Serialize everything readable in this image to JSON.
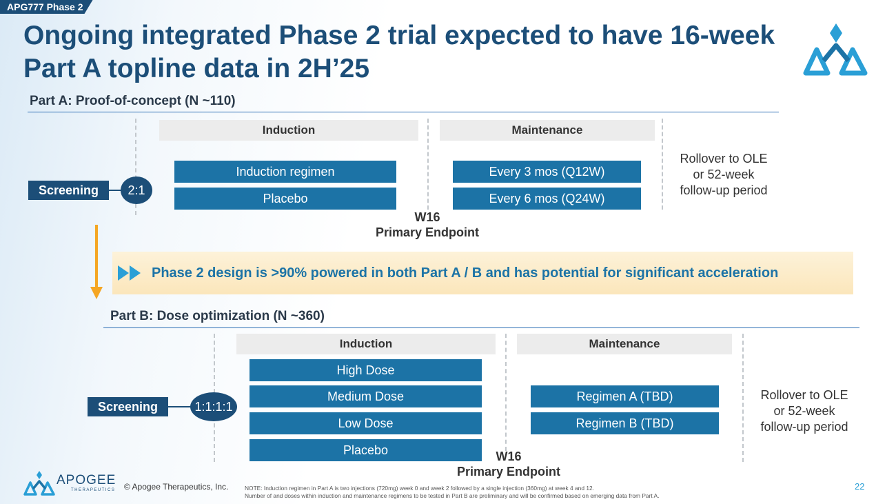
{
  "header": {
    "tag": "APG777 Phase 2",
    "title": "Ongoing integrated Phase 2 trial expected to have 16-week Part A topline data in 2H’25"
  },
  "part_a": {
    "title": "Part A: Proof-of-concept (N ~110)",
    "screening_label": "Screening",
    "ratio": "2:1",
    "induction_head": "Induction",
    "maintenance_head": "Maintenance",
    "induction_arms": [
      "Induction regimen",
      "Placebo"
    ],
    "maintenance_arms": [
      "Every 3 mos (Q12W)",
      "Every 6 mos (Q24W)"
    ],
    "rollover": [
      "Rollover to OLE",
      "or 52-week",
      "follow-up period"
    ],
    "endpoint": [
      "W16",
      "Primary Endpoint"
    ]
  },
  "banner": {
    "text": "Phase 2 design is >90% powered in both Part A / B and has potential for significant acceleration"
  },
  "part_b": {
    "title": "Part B: Dose optimization (N ~360)",
    "screening_label": "Screening",
    "ratio": "1:1:1:1",
    "induction_head": "Induction",
    "maintenance_head": "Maintenance",
    "induction_arms": [
      "High Dose",
      "Medium Dose",
      "Low Dose",
      "Placebo"
    ],
    "maintenance_arms": [
      "Regimen A (TBD)",
      "Regimen B (TBD)"
    ],
    "rollover": [
      "Rollover to OLE",
      "or 52-week",
      "follow-up period"
    ],
    "endpoint": [
      "W16",
      "Primary Endpoint"
    ]
  },
  "footer": {
    "logo_word": "APOGEE",
    "logo_sub": "THERAPEUTICS",
    "copyright": "© Apogee Therapeutics, Inc.",
    "note_line1": "NOTE: Induction regimen in Part A is two injections (720mg) week 0 and week 2 followed by a single injection (360mg) at week 4 and 12.",
    "note_line2": "Number of and doses within induction and maintenance regimens to be tested in Part B are preliminary and will be confirmed based on emerging data from Part A.",
    "page_number": "22"
  },
  "colors": {
    "navy": "#1c4e78",
    "bar_blue": "#1c73a6",
    "accent_teal": "#2a9fd6",
    "arrow_orange": "#f5a623"
  }
}
